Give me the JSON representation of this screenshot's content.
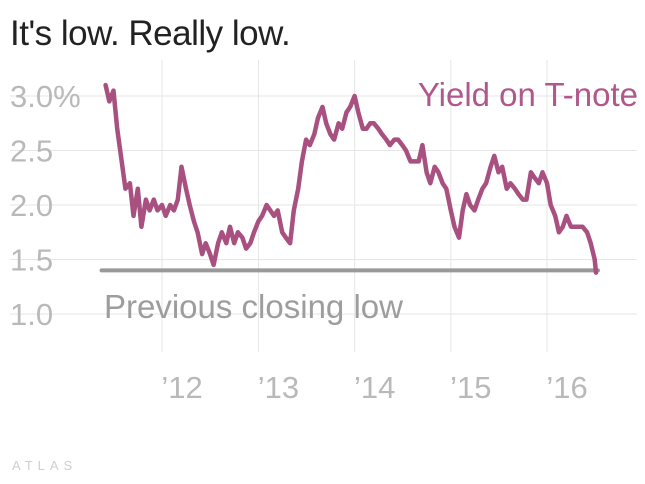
{
  "title": "It's low. Really low.",
  "brand": "ATLAS",
  "colors": {
    "series": "#a8507f",
    "reference": "#999999",
    "grid": "#e6e6e6",
    "ticks": "#b9b9b9"
  },
  "chart_data": {
    "type": "line",
    "title": "It's low. Really low.",
    "xlabel": "",
    "ylabel": "",
    "ylim": [
      1.0,
      3.2
    ],
    "xlim": [
      "2011-05-01",
      "2016-07-31"
    ],
    "grid": true,
    "y_ticks": [
      1.0,
      1.5,
      2.0,
      2.5,
      3.0
    ],
    "y_tick_labels": [
      "1.0",
      "1.5",
      "2.0",
      "2.5",
      "3.0%"
    ],
    "x_ticks": [
      "2012-01-01",
      "2013-01-01",
      "2014-01-01",
      "2015-01-01",
      "2016-01-01"
    ],
    "x_tick_labels": [
      "’12",
      "’13",
      "’14",
      "’15",
      "’16"
    ],
    "series": [
      {
        "name": "Yield on T-note",
        "x": [
          "2011-06-01",
          "2011-06-15",
          "2011-07-01",
          "2011-07-15",
          "2011-08-01",
          "2011-08-15",
          "2011-09-01",
          "2011-09-15",
          "2011-10-01",
          "2011-10-15",
          "2011-11-01",
          "2011-11-15",
          "2011-12-01",
          "2011-12-15",
          "2012-01-01",
          "2012-01-15",
          "2012-02-01",
          "2012-02-15",
          "2012-03-01",
          "2012-03-15",
          "2012-04-01",
          "2012-04-15",
          "2012-05-01",
          "2012-05-15",
          "2012-06-01",
          "2012-06-15",
          "2012-07-01",
          "2012-07-15",
          "2012-08-01",
          "2012-08-15",
          "2012-09-01",
          "2012-09-15",
          "2012-10-01",
          "2012-10-15",
          "2012-11-01",
          "2012-11-15",
          "2012-12-01",
          "2012-12-15",
          "2013-01-01",
          "2013-01-15",
          "2013-02-01",
          "2013-02-15",
          "2013-03-01",
          "2013-03-15",
          "2013-04-01",
          "2013-04-15",
          "2013-05-01",
          "2013-05-15",
          "2013-06-01",
          "2013-06-15",
          "2013-07-01",
          "2013-07-15",
          "2013-08-01",
          "2013-08-15",
          "2013-09-01",
          "2013-09-15",
          "2013-10-01",
          "2013-10-15",
          "2013-11-01",
          "2013-11-15",
          "2013-12-01",
          "2013-12-15",
          "2014-01-01",
          "2014-01-15",
          "2014-02-01",
          "2014-02-15",
          "2014-03-01",
          "2014-03-15",
          "2014-04-01",
          "2014-04-15",
          "2014-05-01",
          "2014-05-15",
          "2014-06-01",
          "2014-06-15",
          "2014-07-01",
          "2014-07-15",
          "2014-08-01",
          "2014-08-15",
          "2014-09-01",
          "2014-09-15",
          "2014-10-01",
          "2014-10-15",
          "2014-11-01",
          "2014-11-15",
          "2014-12-01",
          "2014-12-15",
          "2015-01-01",
          "2015-01-15",
          "2015-02-01",
          "2015-02-15",
          "2015-03-01",
          "2015-03-15",
          "2015-04-01",
          "2015-04-15",
          "2015-05-01",
          "2015-05-15",
          "2015-06-01",
          "2015-06-15",
          "2015-07-01",
          "2015-07-15",
          "2015-08-01",
          "2015-08-15",
          "2015-09-01",
          "2015-09-15",
          "2015-10-01",
          "2015-10-15",
          "2015-11-01",
          "2015-11-15",
          "2015-12-01",
          "2015-12-15",
          "2016-01-01",
          "2016-01-15",
          "2016-02-01",
          "2016-02-15",
          "2016-03-01",
          "2016-03-15",
          "2016-04-01",
          "2016-04-15",
          "2016-05-01",
          "2016-05-15",
          "2016-06-01",
          "2016-06-15",
          "2016-06-30",
          "2016-07-05"
        ],
        "values": [
          3.1,
          2.95,
          3.05,
          2.7,
          2.4,
          2.15,
          2.2,
          1.9,
          2.15,
          1.8,
          2.05,
          1.95,
          2.05,
          1.95,
          2.0,
          1.9,
          2.0,
          1.95,
          2.05,
          2.35,
          2.15,
          2.0,
          1.85,
          1.75,
          1.55,
          1.65,
          1.55,
          1.45,
          1.65,
          1.75,
          1.65,
          1.8,
          1.65,
          1.75,
          1.7,
          1.6,
          1.65,
          1.75,
          1.85,
          1.9,
          2.0,
          1.95,
          1.9,
          1.95,
          1.75,
          1.7,
          1.65,
          1.95,
          2.15,
          2.4,
          2.6,
          2.55,
          2.65,
          2.8,
          2.9,
          2.75,
          2.65,
          2.6,
          2.75,
          2.7,
          2.85,
          2.9,
          3.0,
          2.85,
          2.7,
          2.7,
          2.75,
          2.75,
          2.7,
          2.65,
          2.6,
          2.55,
          2.6,
          2.6,
          2.55,
          2.5,
          2.4,
          2.4,
          2.4,
          2.55,
          2.3,
          2.2,
          2.35,
          2.3,
          2.2,
          2.15,
          1.95,
          1.8,
          1.7,
          1.95,
          2.1,
          2.0,
          1.95,
          2.05,
          2.15,
          2.2,
          2.35,
          2.45,
          2.3,
          2.35,
          2.15,
          2.2,
          2.15,
          2.1,
          2.05,
          2.05,
          2.3,
          2.25,
          2.2,
          2.3,
          2.2,
          2.0,
          1.9,
          1.75,
          1.8,
          1.9,
          1.8,
          1.8,
          1.8,
          1.8,
          1.75,
          1.65,
          1.5,
          1.38
        ]
      }
    ],
    "reference_line": {
      "label": "Previous closing low",
      "value": 1.4,
      "x_start": "2011-06-01",
      "x_end": "2016-07-05"
    }
  }
}
